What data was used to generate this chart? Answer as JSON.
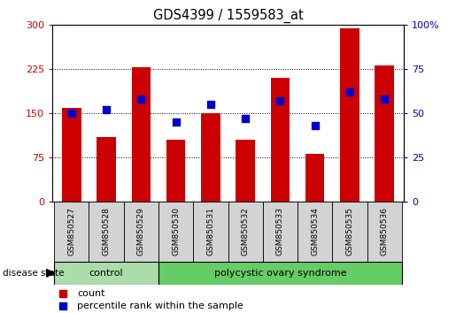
{
  "title": "GDS4399 / 1559583_at",
  "samples": [
    "GSM850527",
    "GSM850528",
    "GSM850529",
    "GSM850530",
    "GSM850531",
    "GSM850532",
    "GSM850533",
    "GSM850534",
    "GSM850535",
    "GSM850536"
  ],
  "counts": [
    160,
    110,
    228,
    105,
    150,
    105,
    210,
    82,
    295,
    232
  ],
  "percentile_ranks": [
    50,
    52,
    58,
    45,
    55,
    47,
    57,
    43,
    62,
    58
  ],
  "bar_color": "#cc0000",
  "dot_color": "#0000cc",
  "left_ylim": [
    0,
    300
  ],
  "left_yticks": [
    0,
    75,
    150,
    225,
    300
  ],
  "right_ylim": [
    0,
    100
  ],
  "right_yticks": [
    0,
    25,
    50,
    75,
    100
  ],
  "right_yticklabels": [
    "0",
    "25",
    "50",
    "75",
    "100%"
  ],
  "control_samples": 3,
  "control_label": "control",
  "disease_label": "polycystic ovary syndrome",
  "group_label": "disease state",
  "legend_count": "count",
  "legend_percentile": "percentile rank within the sample",
  "control_color": "#aaddaa",
  "disease_color": "#66cc66",
  "tick_label_color_left": "#cc0000",
  "tick_label_color_right": "#0000cc",
  "group_box_color": "#d3d3d3",
  "background_color": "#ffffff"
}
